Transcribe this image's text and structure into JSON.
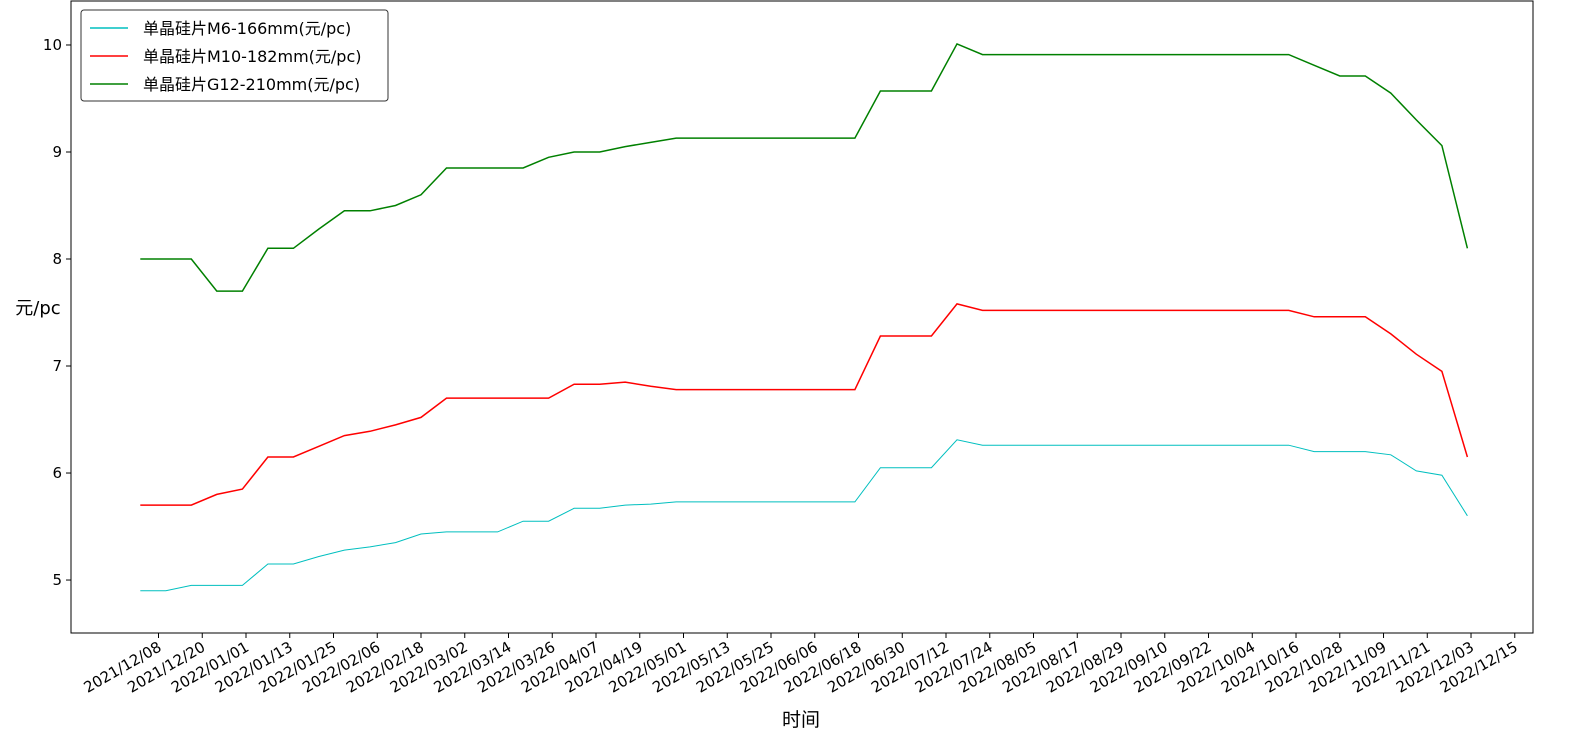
{
  "chart_data": {
    "type": "line",
    "x_label": "时间",
    "y_label": "元/pc",
    "x": [
      "2021/12/03",
      "2021/12/10",
      "2021/12/17",
      "2021/12/24",
      "2021/12/31",
      "2022/01/07",
      "2022/01/14",
      "2022/01/21",
      "2022/01/28",
      "2022/02/04",
      "2022/02/11",
      "2022/02/18",
      "2022/02/25",
      "2022/03/04",
      "2022/03/11",
      "2022/03/18",
      "2022/03/25",
      "2022/04/01",
      "2022/04/08",
      "2022/04/15",
      "2022/04/22",
      "2022/04/29",
      "2022/05/06",
      "2022/05/13",
      "2022/05/20",
      "2022/05/27",
      "2022/06/03",
      "2022/06/10",
      "2022/06/17",
      "2022/06/24",
      "2022/07/01",
      "2022/07/08",
      "2022/07/15",
      "2022/07/22",
      "2022/07/29",
      "2022/08/05",
      "2022/08/12",
      "2022/08/19",
      "2022/08/26",
      "2022/09/02",
      "2022/09/09",
      "2022/09/16",
      "2022/09/23",
      "2022/09/30",
      "2022/10/07",
      "2022/10/14",
      "2022/10/21",
      "2022/10/28",
      "2022/11/04",
      "2022/11/11",
      "2022/11/18",
      "2022/11/25",
      "2022/12/02"
    ],
    "series": [
      {
        "name": "单晶硅片M6-166mm(元/pc)",
        "color": "#00bfbf",
        "values": [
          4.9,
          4.9,
          4.95,
          4.95,
          4.95,
          5.15,
          5.15,
          5.22,
          5.28,
          5.31,
          5.35,
          5.43,
          5.45,
          5.45,
          5.45,
          5.55,
          5.55,
          5.67,
          5.67,
          5.7,
          5.71,
          5.73,
          5.73,
          5.73,
          5.73,
          5.73,
          5.73,
          5.73,
          5.73,
          6.05,
          6.05,
          6.05,
          6.31,
          6.26,
          6.26,
          6.26,
          6.26,
          6.26,
          6.26,
          6.26,
          6.26,
          6.26,
          6.26,
          6.26,
          6.26,
          6.26,
          6.2,
          6.2,
          6.2,
          6.17,
          6.02,
          5.98,
          5.6
        ]
      },
      {
        "name": "单晶硅片M10-182mm(元/pc)",
        "color": "#ff0000",
        "values": [
          5.7,
          5.7,
          5.7,
          5.8,
          5.85,
          6.15,
          6.15,
          6.25,
          6.35,
          6.39,
          6.45,
          6.52,
          6.7,
          6.7,
          6.7,
          6.7,
          6.7,
          6.83,
          6.83,
          6.85,
          6.81,
          6.78,
          6.78,
          6.78,
          6.78,
          6.78,
          6.78,
          6.78,
          6.78,
          7.28,
          7.28,
          7.28,
          7.58,
          7.52,
          7.52,
          7.52,
          7.52,
          7.52,
          7.52,
          7.52,
          7.52,
          7.52,
          7.52,
          7.52,
          7.52,
          7.52,
          7.46,
          7.46,
          7.46,
          7.3,
          7.11,
          6.95,
          6.15
        ]
      },
      {
        "name": "单晶硅片G12-210mm(元/pc)",
        "color": "#008000",
        "values": [
          8.0,
          8.0,
          8.0,
          7.7,
          7.7,
          8.1,
          8.1,
          8.28,
          8.45,
          8.45,
          8.5,
          8.6,
          8.85,
          8.85,
          8.85,
          8.85,
          8.95,
          9.0,
          9.0,
          9.05,
          9.09,
          9.13,
          9.13,
          9.13,
          9.13,
          9.13,
          9.13,
          9.13,
          9.13,
          9.57,
          9.57,
          9.57,
          10.01,
          9.91,
          9.91,
          9.91,
          9.91,
          9.91,
          9.91,
          9.91,
          9.91,
          9.91,
          9.91,
          9.91,
          9.91,
          9.91,
          9.81,
          9.71,
          9.71,
          9.55,
          9.3,
          9.06,
          8.1
        ]
      }
    ],
    "xlim": [
      "2021/11/14",
      "2022/12/20"
    ],
    "xticks": [
      "2021/12/08",
      "2021/12/20",
      "2022/01/01",
      "2022/01/13",
      "2022/01/25",
      "2022/02/06",
      "2022/02/18",
      "2022/03/02",
      "2022/03/14",
      "2022/03/26",
      "2022/04/07",
      "2022/04/19",
      "2022/05/01",
      "2022/05/13",
      "2022/05/25",
      "2022/06/06",
      "2022/06/18",
      "2022/06/30",
      "2022/07/12",
      "2022/07/24",
      "2022/08/05",
      "2022/08/17",
      "2022/08/29",
      "2022/09/10",
      "2022/09/22",
      "2022/10/04",
      "2022/10/16",
      "2022/10/28",
      "2022/11/09",
      "2022/11/21",
      "2022/12/03",
      "2022/12/15"
    ],
    "ylim": [
      4.505,
      10.411
    ],
    "yticks": [
      5,
      6,
      7,
      8,
      9,
      10
    ],
    "legend": "upper left"
  }
}
